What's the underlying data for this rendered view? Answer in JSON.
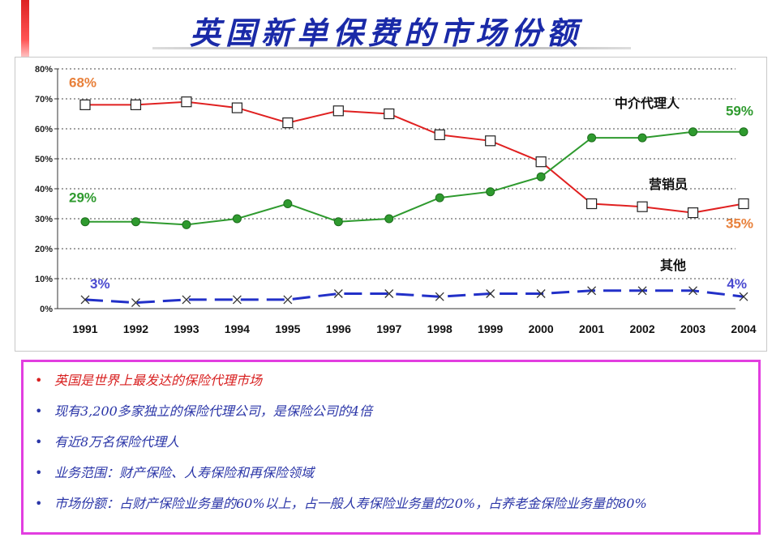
{
  "title": "英国新单保费的市场份额",
  "chart_data": {
    "type": "line",
    "x": [
      "1991",
      "1992",
      "1993",
      "1994",
      "1995",
      "1996",
      "1997",
      "1998",
      "1999",
      "2000",
      "2001",
      "2002",
      "2003",
      "2004"
    ],
    "y_ticks": [
      "0%",
      "10%",
      "20%",
      "30%",
      "40%",
      "50%",
      "60%",
      "70%",
      "80%"
    ],
    "ylim": [
      0,
      80
    ],
    "grid": "horizontal dotted",
    "series": [
      {
        "name": "中介代理人",
        "color": "#e02020",
        "marker": "open-square",
        "values": [
          68,
          68,
          69,
          67,
          62,
          66,
          65,
          58,
          56,
          49,
          35,
          34,
          32,
          35
        ],
        "start_label": "68%",
        "end_label": "35%"
      },
      {
        "name": "营销员",
        "color": "#2e9a2e",
        "marker": "filled-circle",
        "values": [
          29,
          29,
          28,
          30,
          35,
          29,
          30,
          37,
          39,
          44,
          57,
          57,
          59,
          59
        ],
        "start_label": "29%",
        "end_label": "59%"
      },
      {
        "name": "其他",
        "color": "#2230c8",
        "marker": "x",
        "dash": "long-dash",
        "values": [
          3,
          2,
          3,
          3,
          3,
          5,
          5,
          4,
          5,
          5,
          6,
          6,
          6,
          4
        ],
        "start_label": "3%",
        "end_label": "4%"
      }
    ],
    "label_colors": {
      "orange": "#e8803a",
      "green": "#2e9a2e",
      "blue": "#4a4ad0"
    }
  },
  "notes": [
    "英国是世界上最发达的保险代理市场",
    "现有3,200多家独立的保险代理公司，是保险公司的4倍",
    "有近8万名保险代理人",
    "业务范围：财产保险、人寿保险和再保险领域",
    "市场份额：占财产保险业务量的60%以上，占一般人寿保险业务量的20%，占养老金保险业务量的80%"
  ],
  "bullet": "•"
}
